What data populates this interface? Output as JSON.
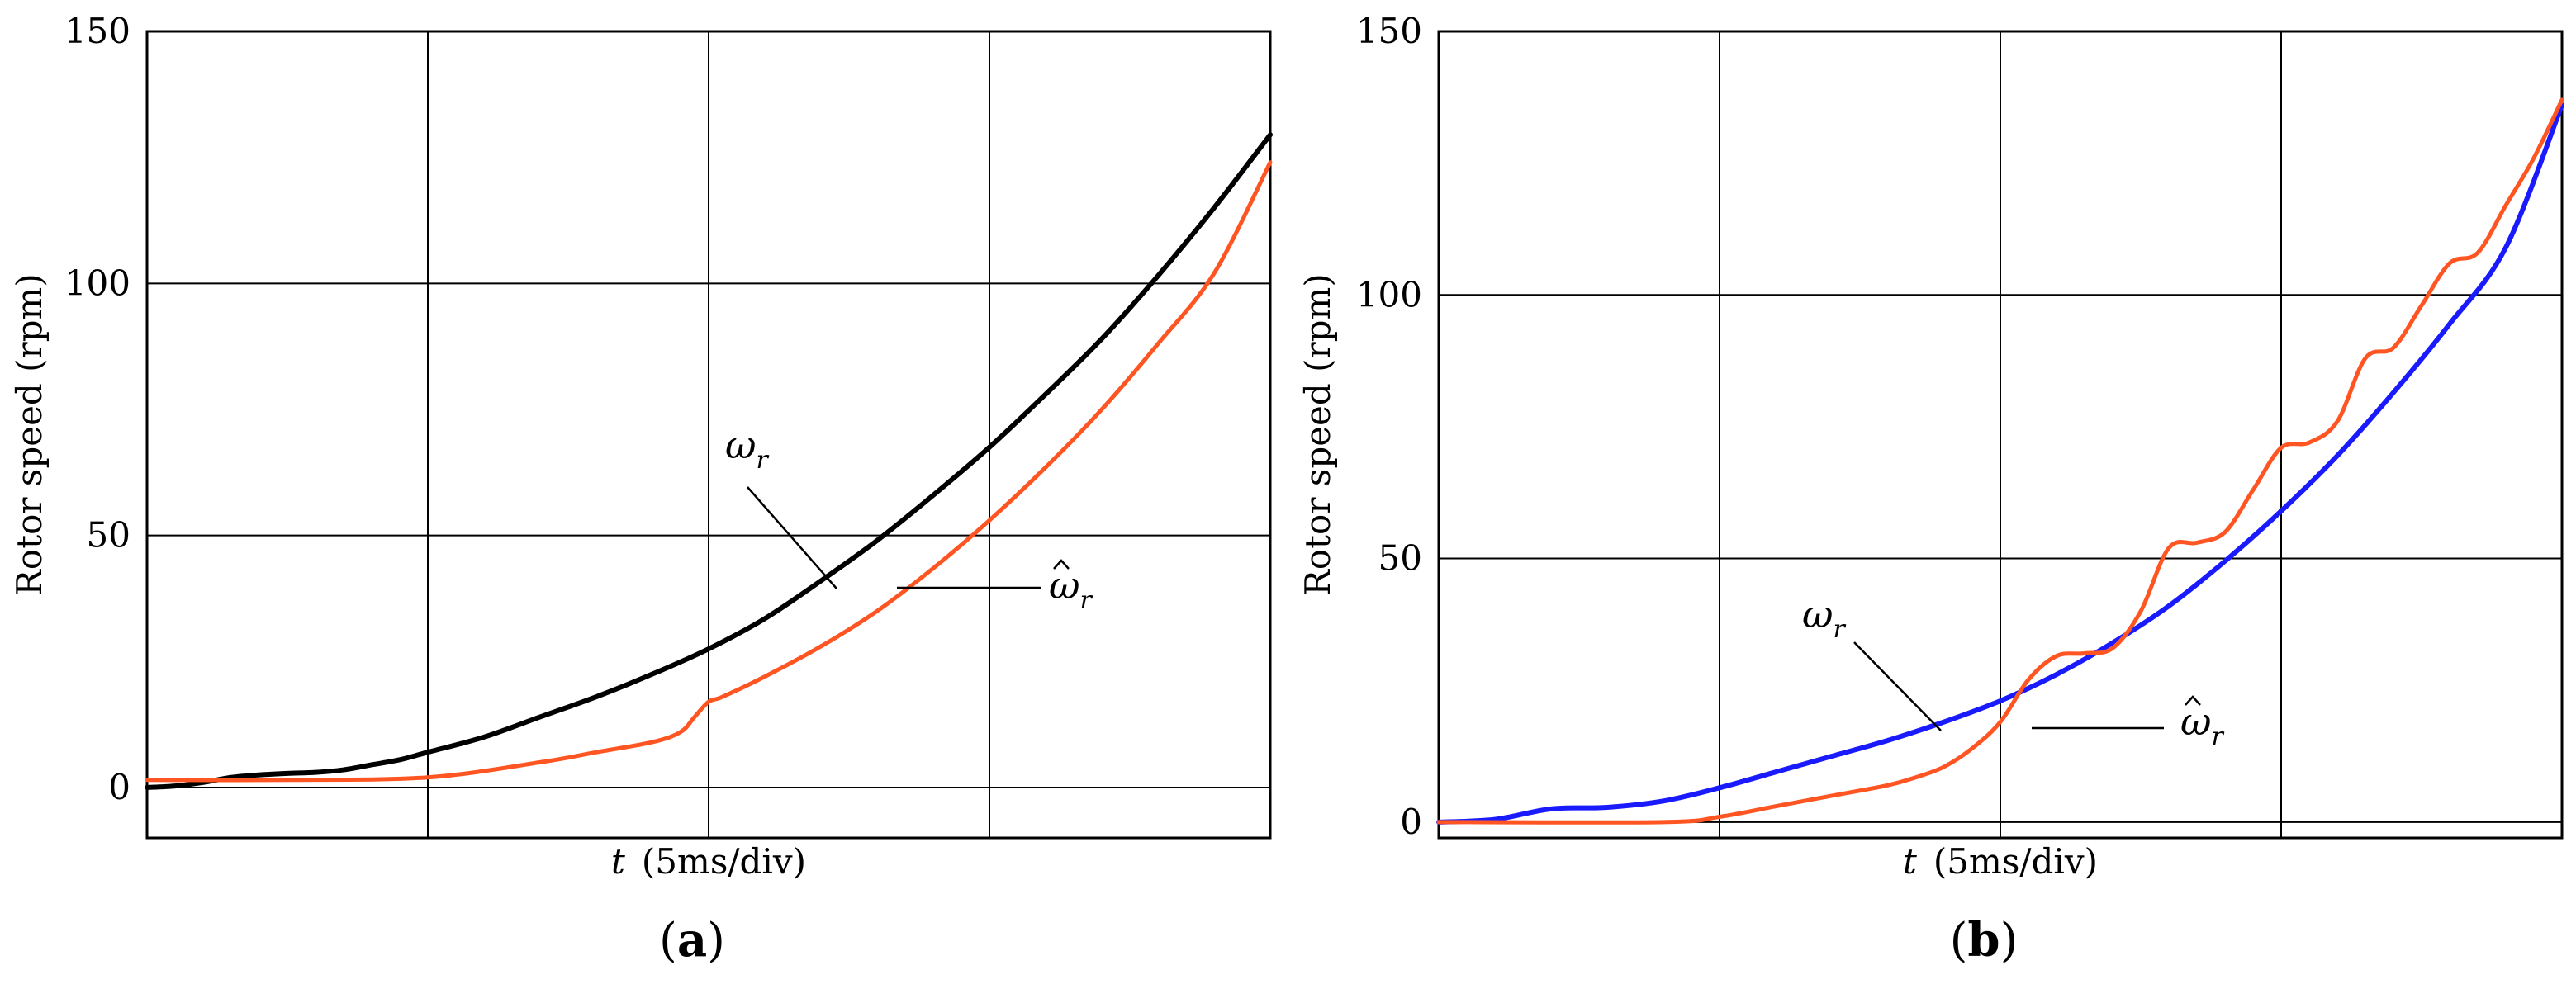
{
  "chart_data": [
    {
      "panel": "(a)",
      "panel_letter": "a",
      "type": "line",
      "xlabel_var": "t",
      "xlabel_unit": "(5ms/div)",
      "ylabel": "Rotor speed  (rpm)",
      "xlim": [
        0,
        4
      ],
      "ylim": [
        -10,
        150
      ],
      "x_divisions": 4,
      "yticks": [
        0,
        50,
        100,
        150
      ],
      "grid": true,
      "series": [
        {
          "name": "ω",
          "sub": "r",
          "hat": false,
          "color": "#000000",
          "x": [
            0,
            0.1,
            0.2,
            0.3,
            0.4,
            0.5,
            0.6,
            0.7,
            0.8,
            0.9,
            1.0,
            1.2,
            1.4,
            1.6,
            1.8,
            2.0,
            2.2,
            2.4,
            2.6,
            2.8,
            3.0,
            3.2,
            3.4,
            3.6,
            3.8,
            4.0
          ],
          "y": [
            0,
            0.3,
            1,
            2,
            2.5,
            2.8,
            3,
            3.5,
            4.5,
            5.5,
            7,
            10,
            14,
            18,
            22.5,
            27.5,
            33.5,
            41,
            49,
            58,
            67.5,
            78,
            89,
            101.5,
            115,
            129.5
          ]
        },
        {
          "name": "ω",
          "sub": "r",
          "hat": true,
          "color": "#ff5522",
          "x": [
            0,
            0.5,
            1.0,
            1.4,
            1.6,
            1.8,
            1.9,
            1.95,
            2.0,
            2.05,
            2.2,
            2.4,
            2.6,
            2.8,
            3.0,
            3.2,
            3.4,
            3.6,
            3.8,
            4.0
          ],
          "y": [
            1.5,
            1.5,
            2,
            5,
            7,
            9,
            11,
            14,
            17,
            18,
            22,
            28,
            35,
            43.5,
            53,
            63.5,
            75,
            88,
            102,
            124
          ]
        }
      ]
    },
    {
      "panel": "(b)",
      "panel_letter": "b",
      "type": "line",
      "xlabel_var": "t",
      "xlabel_unit": "(5ms/div)",
      "ylabel": "Rotor speed  (rpm)",
      "xlim": [
        0,
        4
      ],
      "ylim": [
        -3,
        150
      ],
      "x_divisions": 4,
      "yticks": [
        0,
        50,
        100,
        150
      ],
      "grid": true,
      "series": [
        {
          "name": "ω",
          "sub": "r",
          "hat": false,
          "color": "#1a1aff",
          "x": [
            0,
            0.2,
            0.4,
            0.6,
            0.8,
            1.0,
            1.2,
            1.4,
            1.6,
            1.8,
            2.0,
            2.2,
            2.4,
            2.6,
            2.8,
            3.0,
            3.2,
            3.4,
            3.6,
            3.8,
            4.0
          ],
          "y": [
            0,
            0.5,
            2.5,
            2.8,
            4,
            6.5,
            9.5,
            12.5,
            15.5,
            19,
            23,
            28,
            34,
            41,
            49.5,
            59,
            69.5,
            81.5,
            94.5,
            109,
            136
          ]
        },
        {
          "name": "ω",
          "sub": "r",
          "hat": true,
          "color": "#ff5522",
          "x": [
            0,
            0.8,
            1.0,
            1.2,
            1.4,
            1.6,
            1.7,
            1.8,
            1.9,
            2.0,
            2.1,
            2.2,
            2.3,
            2.4,
            2.5,
            2.6,
            2.7,
            2.8,
            2.9,
            3.0,
            3.1,
            3.2,
            3.3,
            3.4,
            3.5,
            3.6,
            3.7,
            3.8,
            3.9,
            4.0
          ],
          "y": [
            0,
            0,
            1,
            3,
            5,
            7,
            8.5,
            10.5,
            14,
            19,
            27,
            31.5,
            32,
            33,
            40,
            52,
            53,
            55,
            63,
            71,
            72,
            76,
            88,
            90,
            98,
            106,
            108,
            117,
            126,
            137
          ]
        }
      ]
    }
  ]
}
